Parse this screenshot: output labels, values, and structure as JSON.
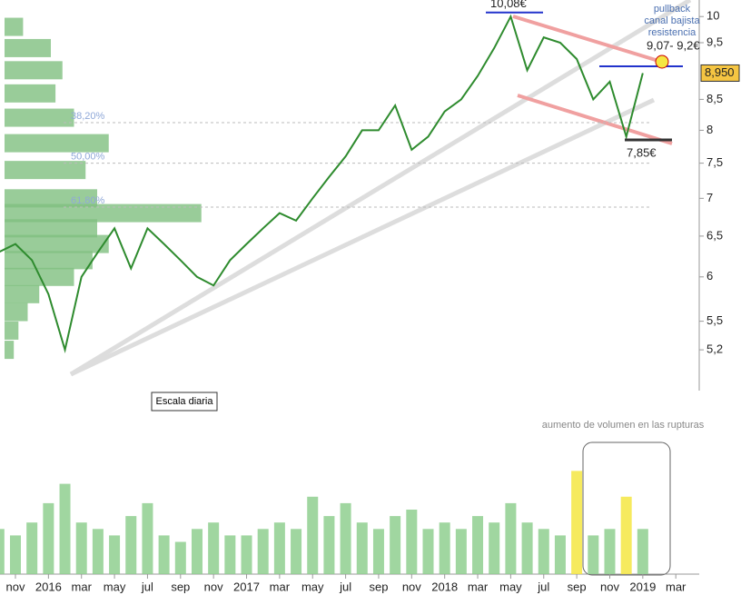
{
  "chart_data": [
    {
      "type": "line",
      "color": "#2e8b2e",
      "log_scale": true,
      "x": [
        "2015-10",
        "2015-11",
        "2015-12",
        "2016-01",
        "2016-02",
        "2016-03",
        "2016-04",
        "2016-05",
        "2016-06",
        "2016-07",
        "2016-08",
        "2016-09",
        "2016-10",
        "2016-11",
        "2016-12",
        "2017-01",
        "2017-02",
        "2017-03",
        "2017-04",
        "2017-05",
        "2017-06",
        "2017-07",
        "2017-08",
        "2017-09",
        "2017-10",
        "2017-11",
        "2017-12",
        "2018-01",
        "2018-02",
        "2018-03",
        "2018-04",
        "2018-05",
        "2018-06",
        "2018-07",
        "2018-08",
        "2018-09",
        "2018-10",
        "2018-11",
        "2018-12",
        "2019-01"
      ],
      "values": [
        6.3,
        6.4,
        6.2,
        5.8,
        5.2,
        6.0,
        6.3,
        6.6,
        6.1,
        6.6,
        6.4,
        6.2,
        6.0,
        5.9,
        6.2,
        6.4,
        6.6,
        6.8,
        6.7,
        7.0,
        7.3,
        7.6,
        8.0,
        8.0,
        8.4,
        7.7,
        7.9,
        8.3,
        8.5,
        8.9,
        9.4,
        10.0,
        9.0,
        9.6,
        9.5,
        9.2,
        8.5,
        8.8,
        7.9,
        8.95
      ],
      "ylim": [
        4.8,
        10.33
      ],
      "yticks": [
        10,
        {
          "value": 9.5,
          "label": "9,5"
        },
        {
          "value": 8.5,
          "label": "8,5"
        },
        8,
        {
          "value": 7.5,
          "label": "7,5"
        },
        7,
        {
          "value": 6.5,
          "label": "6,5"
        },
        6,
        {
          "value": 5.5,
          "label": "5,5"
        },
        {
          "value": 5.2,
          "label": "5,2"
        }
      ],
      "last_price": {
        "value": 8.95,
        "label": "8,950"
      },
      "fibonacci": [
        {
          "value": 8.12,
          "label": "38,20%"
        },
        {
          "value": 7.5,
          "label": "50,00%"
        },
        {
          "value": 6.88,
          "label": "61,80%"
        }
      ],
      "high": {
        "value": 10.08,
        "label": "10,08€"
      },
      "low": {
        "value": 7.85,
        "label": "7,85€"
      },
      "resistance": {
        "value": 9.07,
        "label": "9,07- 9,2€"
      },
      "note": [
        "pullback",
        "canal bajista",
        "resistencia"
      ],
      "scale_label": "Escala diaria",
      "volume_profile": {
        "levels": [
          9.8,
          9.4,
          9.0,
          8.6,
          8.2,
          7.8,
          7.4,
          7.0,
          6.8,
          6.6,
          6.4,
          6.2,
          6.0,
          5.8,
          5.6,
          5.4,
          5.2
        ],
        "values": [
          8,
          20,
          25,
          22,
          30,
          45,
          35,
          40,
          85,
          40,
          45,
          38,
          30,
          15,
          10,
          6,
          4
        ],
        "xlim": [
          0,
          100
        ]
      }
    },
    {
      "type": "bar",
      "color": "#8fcf8f",
      "highlight_color": "#f5e642",
      "x": [
        "2015-10",
        "2015-11",
        "2015-12",
        "2016-01",
        "2016-02",
        "2016-03",
        "2016-04",
        "2016-05",
        "2016-06",
        "2016-07",
        "2016-08",
        "2016-09",
        "2016-10",
        "2016-11",
        "2016-12",
        "2017-01",
        "2017-02",
        "2017-03",
        "2017-04",
        "2017-05",
        "2017-06",
        "2017-07",
        "2017-08",
        "2017-09",
        "2017-10",
        "2017-11",
        "2017-12",
        "2018-01",
        "2018-02",
        "2018-03",
        "2018-04",
        "2018-05",
        "2018-06",
        "2018-07",
        "2018-08",
        "2018-09",
        "2018-10",
        "2018-11",
        "2018-12",
        "2019-01"
      ],
      "values": [
        35,
        30,
        40,
        55,
        70,
        40,
        35,
        30,
        45,
        55,
        30,
        25,
        35,
        40,
        30,
        30,
        35,
        40,
        35,
        60,
        45,
        55,
        40,
        35,
        45,
        50,
        35,
        40,
        35,
        45,
        40,
        55,
        40,
        35,
        30,
        80,
        30,
        35,
        60,
        35
      ],
      "highlight": [
        "2018-09",
        "2018-12"
      ],
      "ylim": [
        0,
        100
      ],
      "annotation": "aumento de volumen en las rupturas",
      "xticks": [
        {
          "value": "2015-11",
          "label": "nov"
        },
        {
          "value": "2016-01",
          "label": "2016"
        },
        {
          "value": "2016-03",
          "label": "mar"
        },
        {
          "value": "2016-05",
          "label": "may"
        },
        {
          "value": "2016-07",
          "label": "jul"
        },
        {
          "value": "2016-09",
          "label": "sep"
        },
        {
          "value": "2016-11",
          "label": "nov"
        },
        {
          "value": "2017-01",
          "label": "2017"
        },
        {
          "value": "2017-03",
          "label": "mar"
        },
        {
          "value": "2017-05",
          "label": "may"
        },
        {
          "value": "2017-07",
          "label": "jul"
        },
        {
          "value": "2017-09",
          "label": "sep"
        },
        {
          "value": "2017-11",
          "label": "nov"
        },
        {
          "value": "2018-01",
          "label": "2018"
        },
        {
          "value": "2018-03",
          "label": "mar"
        },
        {
          "value": "2018-05",
          "label": "may"
        },
        {
          "value": "2018-07",
          "label": "jul"
        },
        {
          "value": "2018-09",
          "label": "sep"
        },
        {
          "value": "2018-11",
          "label": "nov"
        },
        {
          "value": "2019-01",
          "label": "2019"
        },
        {
          "value": "2019-03",
          "label": "mar"
        }
      ]
    }
  ]
}
